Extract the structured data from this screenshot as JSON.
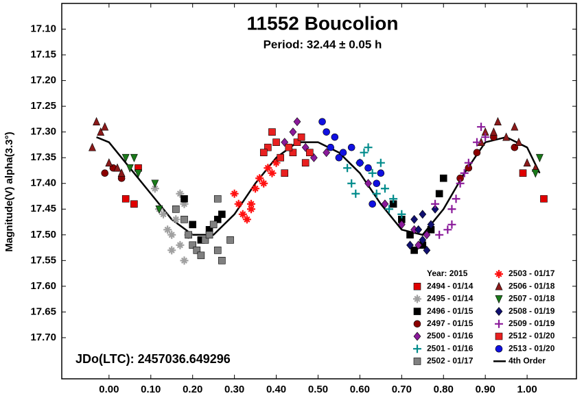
{
  "chart_data": {
    "type": "scatter",
    "title": "11552 Boucolion",
    "subtitle": "Period: 32.44 ± 0.05 h",
    "annotation": "JDo(LTC): 2457036.649296",
    "y_label": "Magnitude(V) alpha(3.3°)",
    "legend_title": "Year: 2015",
    "legend": "bottom-right",
    "y_inverted": true,
    "xlim": [
      -0.113,
      1.118
    ],
    "ylim": [
      17.05,
      17.78
    ],
    "xticks": [
      {
        "value": 0,
        "label": "0.00"
      },
      {
        "value": 0.1,
        "label": "0.10"
      },
      {
        "value": 0.2,
        "label": "0.20"
      },
      {
        "value": 0.3,
        "label": "0.30"
      },
      {
        "value": 0.4,
        "label": "0.40"
      },
      {
        "value": 0.5,
        "label": "0.50"
      },
      {
        "value": 0.6,
        "label": "0.60"
      },
      {
        "value": 0.7,
        "label": "0.70"
      },
      {
        "value": 0.8,
        "label": "0.80"
      },
      {
        "value": 0.9,
        "label": "0.90"
      },
      {
        "value": 1,
        "label": "1.00"
      }
    ],
    "yticks": [
      {
        "value": 17.1,
        "label": "17.10"
      },
      {
        "value": 17.15,
        "label": "17.15"
      },
      {
        "value": 17.2,
        "label": "17.20"
      },
      {
        "value": 17.25,
        "label": "17.25"
      },
      {
        "value": 17.3,
        "label": "17.30"
      },
      {
        "value": 17.35,
        "label": "17.35"
      },
      {
        "value": 17.4,
        "label": "17.40"
      },
      {
        "value": 17.45,
        "label": "17.45"
      },
      {
        "value": 17.5,
        "label": "17.50"
      },
      {
        "value": 17.55,
        "label": "17.55"
      },
      {
        "value": 17.6,
        "label": "17.60"
      },
      {
        "value": 17.65,
        "label": "17.65"
      },
      {
        "value": 17.7,
        "label": "17.70"
      }
    ],
    "series": [
      {
        "name": "2494 - 01/14",
        "color": "#e00000",
        "marker": "square",
        "x": [
          0.07,
          0.06,
          0.04,
          1.04,
          0.99
        ],
        "values": [
          17.37,
          17.44,
          17.43,
          17.43,
          17.38
        ]
      },
      {
        "name": "2495 - 01/14",
        "color": "#a0a0a0",
        "marker": "asterisk",
        "x": [
          0.11,
          0.12,
          0.14,
          0.15,
          0.16,
          0.17,
          0.18,
          0.17,
          0.19,
          0.18,
          0.15,
          0.13
        ],
        "values": [
          17.41,
          17.45,
          17.49,
          17.5,
          17.47,
          17.42,
          17.44,
          17.52,
          17.5,
          17.55,
          17.53,
          17.46
        ]
      },
      {
        "name": "2496 - 01/15",
        "color": "#000000",
        "marker": "square",
        "x": [
          0.18,
          0.2,
          0.22,
          0.24,
          0.26,
          0.27,
          0.68,
          0.7,
          0.72,
          0.73,
          0.75,
          0.77,
          0.79,
          0.8
        ],
        "values": [
          17.43,
          17.48,
          17.51,
          17.49,
          17.47,
          17.46,
          17.44,
          17.47,
          17.5,
          17.53,
          17.52,
          17.49,
          17.42,
          17.39
        ]
      },
      {
        "name": "2497 - 01/15",
        "color": "#8b0000",
        "marker": "circle",
        "x": [
          -0.01,
          0.01,
          0.03,
          0.84,
          0.86,
          0.88,
          0.97,
          0.92
        ],
        "values": [
          17.38,
          17.37,
          17.39,
          17.39,
          17.37,
          17.34,
          17.33,
          17.31
        ]
      },
      {
        "name": "2500 - 01/16",
        "color": "#8a1a9a",
        "marker": "diamond",
        "x": [
          0.42,
          0.44,
          0.45,
          0.47,
          0.49,
          0.52,
          0.62,
          0.66,
          0.7,
          0.73,
          0.74,
          0.76
        ],
        "values": [
          17.32,
          17.3,
          17.28,
          17.33,
          17.35,
          17.34,
          17.4,
          17.44,
          17.48,
          17.49,
          17.52,
          17.5
        ]
      },
      {
        "name": "2501 - 01/16",
        "color": "#008b8b",
        "marker": "plus",
        "x": [
          0.57,
          0.58,
          0.6,
          0.61,
          0.62,
          0.63,
          0.64,
          0.66,
          0.67,
          0.68,
          0.7,
          0.65,
          0.59
        ],
        "values": [
          17.37,
          17.4,
          17.36,
          17.34,
          17.33,
          17.38,
          17.42,
          17.41,
          17.45,
          17.43,
          17.46,
          17.36,
          17.42
        ]
      },
      {
        "name": "2502 - 01/17",
        "color": "#808080",
        "marker": "square",
        "x": [
          0.16,
          0.18,
          0.19,
          0.2,
          0.21,
          0.22,
          0.23,
          0.24,
          0.25,
          0.26,
          0.27,
          0.26,
          0.29
        ],
        "values": [
          17.45,
          17.47,
          17.5,
          17.52,
          17.53,
          17.54,
          17.51,
          17.5,
          17.48,
          17.53,
          17.55,
          17.43,
          17.51
        ]
      },
      {
        "name": "2503 - 01/17",
        "color": "#ff1010",
        "marker": "asterisk",
        "x": [
          0.3,
          0.31,
          0.32,
          0.33,
          0.34,
          0.35,
          0.36,
          0.37,
          0.38,
          0.39,
          0.4,
          0.34
        ],
        "values": [
          17.42,
          17.44,
          17.46,
          17.47,
          17.45,
          17.41,
          17.39,
          17.4,
          17.37,
          17.38,
          17.36,
          17.44
        ]
      },
      {
        "name": "2506 - 01/18",
        "color": "#8b1a1a",
        "marker": "triangle",
        "x": [
          -0.03,
          -0.02,
          -0.01,
          -0.04,
          0.0,
          0.02,
          0.03,
          0.89,
          0.9,
          0.92,
          0.93,
          0.95,
          0.97,
          0.98,
          1.0,
          1.02
        ],
        "values": [
          17.28,
          17.3,
          17.29,
          17.33,
          17.36,
          17.37,
          17.38,
          17.32,
          17.3,
          17.3,
          17.28,
          17.31,
          17.29,
          17.32,
          17.36,
          17.37
        ]
      },
      {
        "name": "2507 - 01/18",
        "color": "#1a7a1a",
        "marker": "triangle-down",
        "x": [
          0.04,
          0.05,
          0.06,
          0.07,
          0.11,
          0.12,
          1.03,
          1.02
        ],
        "values": [
          17.35,
          17.37,
          17.35,
          17.38,
          17.4,
          17.45,
          17.35,
          17.38
        ]
      },
      {
        "name": "2508 - 01/19",
        "color": "#101070",
        "marker": "diamond",
        "x": [
          0.73,
          0.74,
          0.75,
          0.72,
          0.76,
          0.77,
          0.75,
          0.78
        ],
        "values": [
          17.47,
          17.49,
          17.51,
          17.52,
          17.53,
          17.48,
          17.46,
          17.45
        ]
      },
      {
        "name": "2509 - 01/19",
        "color": "#8a1a9a",
        "marker": "plus",
        "x": [
          0.78,
          0.79,
          0.82,
          0.83,
          0.84,
          0.85,
          0.86,
          0.88,
          0.89,
          0.9,
          0.81,
          0.82
        ],
        "values": [
          17.44,
          17.5,
          17.45,
          17.43,
          17.4,
          17.38,
          17.36,
          17.32,
          17.29,
          17.31,
          17.49,
          17.48
        ]
      },
      {
        "name": "2512 - 01/20",
        "color": "#e82020",
        "marker": "square",
        "x": [
          0.38,
          0.39,
          0.4,
          0.41,
          0.42,
          0.44,
          0.45,
          0.47,
          0.48,
          0.43,
          0.46,
          0.37
        ],
        "values": [
          17.33,
          17.3,
          17.32,
          17.35,
          17.38,
          17.34,
          17.32,
          17.36,
          17.34,
          17.33,
          17.31,
          17.34
        ]
      },
      {
        "name": "2513 - 01/20",
        "color": "#1010e0",
        "marker": "circle",
        "x": [
          0.51,
          0.52,
          0.53,
          0.54,
          0.55,
          0.56,
          0.58,
          0.6,
          0.62,
          0.64,
          0.63,
          0.65
        ],
        "values": [
          17.28,
          17.3,
          17.33,
          17.31,
          17.35,
          17.34,
          17.33,
          17.36,
          17.37,
          17.4,
          17.44,
          17.38
        ]
      }
    ],
    "fit": {
      "name": "4th Order",
      "color": "#000000",
      "x": [
        -0.03,
        0.0,
        0.05,
        0.1,
        0.15,
        0.2,
        0.25,
        0.3,
        0.35,
        0.4,
        0.45,
        0.5,
        0.55,
        0.6,
        0.65,
        0.7,
        0.75,
        0.8,
        0.85,
        0.9,
        0.95,
        1.0,
        1.03
      ],
      "values": [
        17.31,
        17.32,
        17.37,
        17.42,
        17.47,
        17.5,
        17.5,
        17.46,
        17.4,
        17.35,
        17.32,
        17.32,
        17.34,
        17.38,
        17.44,
        17.49,
        17.5,
        17.45,
        17.38,
        17.32,
        17.31,
        17.33,
        17.38
      ]
    }
  }
}
